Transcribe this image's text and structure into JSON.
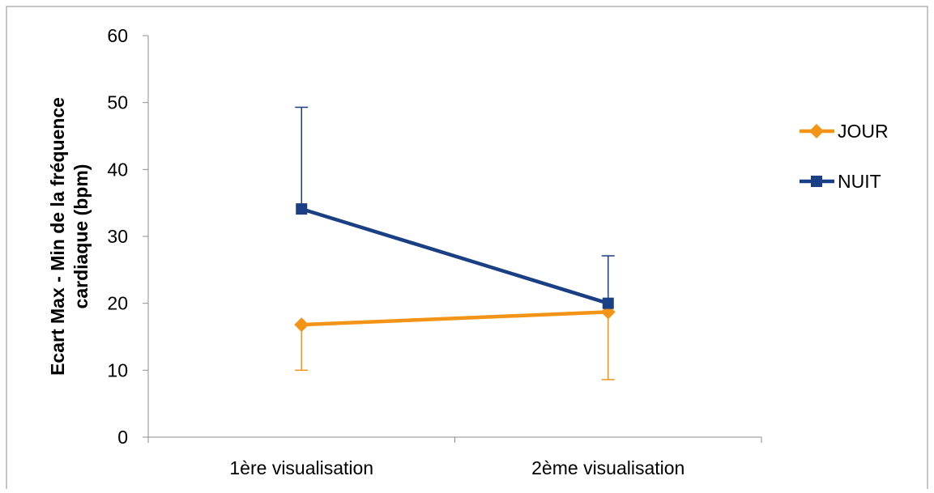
{
  "chart_data": {
    "type": "line",
    "categories": [
      "1ère visualisation",
      "2ème visualisation"
    ],
    "ylabel_lines": [
      "Ecart Max - Min de la fréquence",
      "cardiaque (bpm)"
    ],
    "ylim": [
      0,
      60
    ],
    "yticks": [
      0,
      10,
      20,
      30,
      40,
      50,
      60
    ],
    "grid": false,
    "legend_position": "right",
    "series": [
      {
        "name": "JOUR",
        "values": [
          16.8,
          18.7
        ],
        "error_low": [
          6.8,
          10.1
        ],
        "error_high": [
          0,
          0
        ],
        "color": "#F39417",
        "marker": "diamond"
      },
      {
        "name": "NUIT",
        "values": [
          34.1,
          20.0
        ],
        "error_low": [
          0,
          0
        ],
        "error_high": [
          15.2,
          7.1
        ],
        "color": "#1B3F85",
        "marker": "square"
      }
    ]
  }
}
